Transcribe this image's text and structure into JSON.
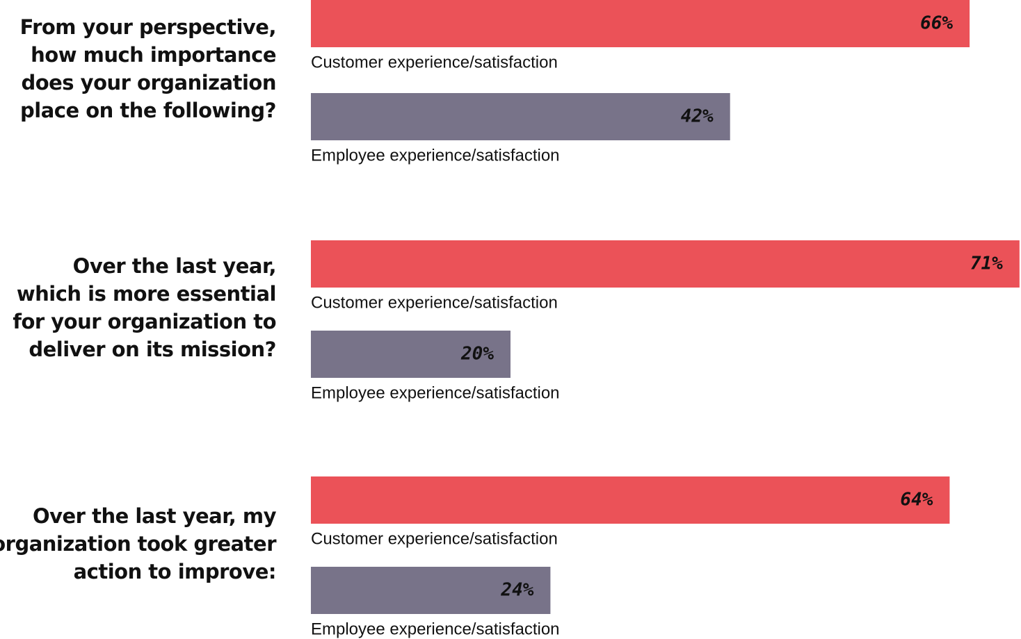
{
  "chart_data": [
    {
      "type": "bar",
      "title": [
        "From your perspective,",
        "how much importance",
        "does your organization",
        "place on the following?"
      ],
      "categories": [
        "Customer experience/satisfaction",
        "Employee experience/satisfaction"
      ],
      "values": [
        66,
        42
      ],
      "value_labels": [
        "66%",
        "42%"
      ],
      "colors": [
        "#eb5258",
        "#787389"
      ]
    },
    {
      "type": "bar",
      "title": [
        "Over the last year,",
        "which is more essential",
        "for your organization to",
        "deliver on its mission?"
      ],
      "categories": [
        "Customer experience/satisfaction",
        "Employee experience/satisfaction"
      ],
      "values": [
        71,
        20
      ],
      "value_labels": [
        "71%",
        "20%"
      ],
      "colors": [
        "#eb5258",
        "#787389"
      ]
    },
    {
      "type": "bar",
      "title": [
        "Over the last year, my",
        "organization took greater",
        "action to improve:"
      ],
      "categories": [
        "Customer experience/satisfaction",
        "Employee experience/satisfaction"
      ],
      "values": [
        64,
        24
      ],
      "value_labels": [
        "64%",
        "24%"
      ],
      "colors": [
        "#eb5258",
        "#787389"
      ]
    }
  ]
}
